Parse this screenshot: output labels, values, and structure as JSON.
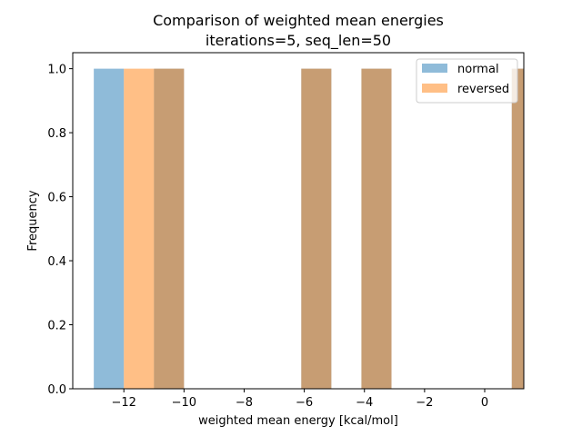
{
  "chart_data": {
    "type": "bar",
    "title_line1": "Comparison of weighted mean energies",
    "title_line2": "iterations=5, seq_len=50",
    "xlabel": "weighted mean energy [kcal/mol]",
    "ylabel": "Frequency",
    "xlim": [
      -13.7,
      1.3
    ],
    "ylim": [
      0,
      1.05
    ],
    "x_ticks": [
      -12,
      -10,
      -8,
      -6,
      -4,
      -2,
      0
    ],
    "x_tick_labels": [
      "−12",
      "−10",
      "−8",
      "−6",
      "−4",
      "−2",
      "0"
    ],
    "y_ticks": [
      0.0,
      0.2,
      0.4,
      0.6,
      0.8,
      1.0
    ],
    "y_tick_labels": [
      "0.0",
      "0.2",
      "0.4",
      "0.6",
      "0.8",
      "1.0"
    ],
    "grid": false,
    "legend_position": "top-right",
    "series": [
      {
        "name": "normal",
        "color": "#1f77b4",
        "alpha": 0.5,
        "bins": [
          {
            "x0": -13.0,
            "x1": -12.0,
            "value": 1
          },
          {
            "x0": -11.0,
            "x1": -10.0,
            "value": 1
          },
          {
            "x0": -6.1,
            "x1": -5.1,
            "value": 1
          },
          {
            "x0": -4.1,
            "x1": -3.1,
            "value": 1
          },
          {
            "x0": 0.9,
            "x1": 1.9,
            "value": 1
          }
        ]
      },
      {
        "name": "reversed",
        "color": "#ff7f0e",
        "alpha": 0.5,
        "bins": [
          {
            "x0": -12.0,
            "x1": -11.0,
            "value": 1
          },
          {
            "x0": -11.0,
            "x1": -10.0,
            "value": 1
          },
          {
            "x0": -6.1,
            "x1": -5.1,
            "value": 1
          },
          {
            "x0": -4.1,
            "x1": -3.1,
            "value": 1
          },
          {
            "x0": 0.9,
            "x1": 1.9,
            "value": 1
          }
        ]
      }
    ]
  }
}
